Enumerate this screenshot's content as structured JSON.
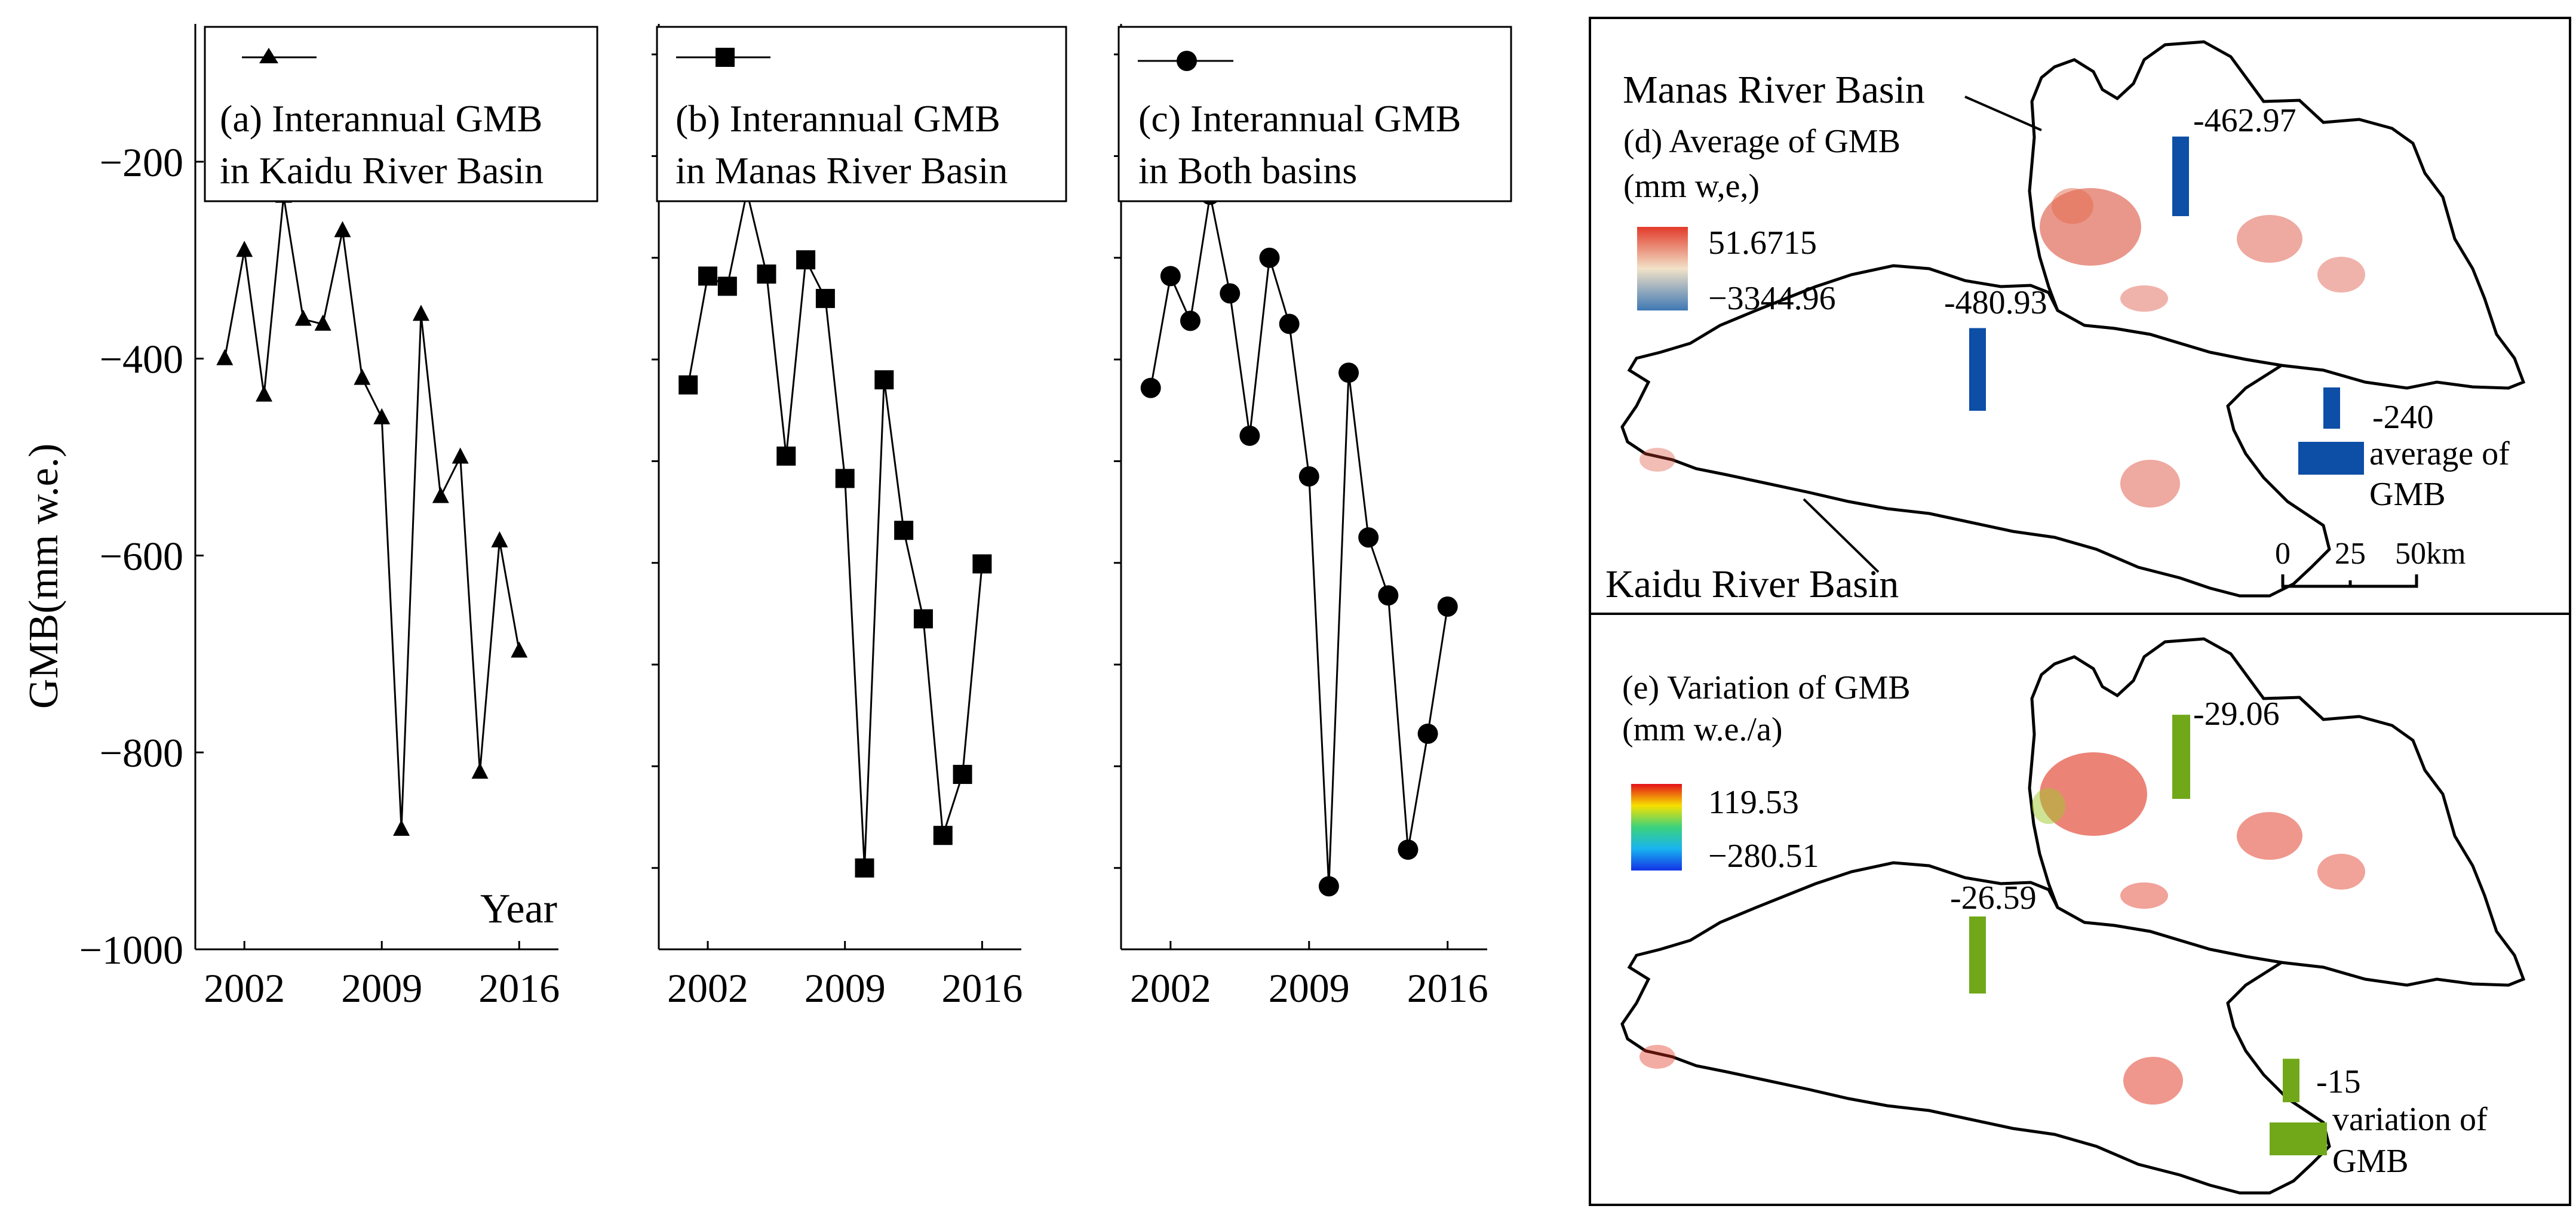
{
  "chart_data": [
    {
      "type": "line",
      "marker": "triangle",
      "title": "(a) Interannual GMB in Kaidu River Basin",
      "title_lines": [
        "(a) Interannual GMB",
        "in Kaidu River Basin"
      ],
      "xlabel": "Year",
      "ylabel": "GMB(mm w.e.)",
      "xlim": [
        1999.5,
        2018
      ],
      "ylim": [
        -1000,
        -60
      ],
      "xticks": [
        2002,
        2009,
        2016
      ],
      "xtick_labels": [
        "2002",
        "2009",
        "2016"
      ],
      "yticks": [
        -200,
        -400,
        -600,
        -800,
        -1000
      ],
      "ytick_labels": [
        "−200",
        "−400",
        "−600",
        "−800",
        "−1000"
      ],
      "x": [
        2001,
        2002,
        2003,
        2004,
        2005,
        2006,
        2007,
        2008,
        2009,
        2010,
        2011,
        2012,
        2013,
        2014,
        2015,
        2016
      ],
      "values": [
        -400,
        -290,
        -437,
        -235,
        -360,
        -365,
        -270,
        -420,
        -460,
        -878,
        -355,
        -540,
        -500,
        -820,
        -585,
        -697
      ]
    },
    {
      "type": "line",
      "marker": "square",
      "title": "(b) Interannual GMB in Manas River Basin",
      "title_lines": [
        "(b) Interannual GMB",
        "in Manas River Basin"
      ],
      "xlim": [
        1999.5,
        2018
      ],
      "ylim": [
        -980,
        -70
      ],
      "xticks": [
        2002,
        2009,
        2016
      ],
      "xtick_labels": [
        "2002",
        "2009",
        "2016"
      ],
      "x": [
        2001,
        2002,
        2003,
        2004,
        2005,
        2006,
        2007,
        2008,
        2009,
        2010,
        2011,
        2012,
        2013,
        2014,
        2015,
        2016
      ],
      "values": [
        -425,
        -318,
        -328,
        -235,
        -316,
        -495,
        -302,
        -340,
        -517,
        -900,
        -420,
        -568,
        -655,
        -868,
        -808,
        -601
      ]
    },
    {
      "type": "line",
      "marker": "circle",
      "title": "(c) Interannual GMB in Both basins",
      "title_lines": [
        "(c) Interannual GMB",
        "in Both basins"
      ],
      "xlim": [
        1999.5,
        2018
      ],
      "ylim": [
        -980,
        -70
      ],
      "xticks": [
        2002,
        2009,
        2016
      ],
      "xtick_labels": [
        "2002",
        "2009",
        "2016"
      ],
      "x": [
        2001,
        2002,
        2003,
        2004,
        2005,
        2006,
        2007,
        2008,
        2009,
        2010,
        2011,
        2012,
        2013,
        2014,
        2015,
        2016
      ],
      "values": [
        -428,
        -318,
        -362,
        -238,
        -335,
        -475,
        -300,
        -365,
        -515,
        -918,
        -413,
        -575,
        -632,
        -882,
        -768,
        -643
      ]
    }
  ],
  "map_panels": {
    "d": {
      "basin_label_manas": "Manas River Basin",
      "basin_label_kaidu": "Kaidu River Basin",
      "title": "(d) Average of GMB",
      "unit": "(mm w,e,)",
      "legend_max": "51.6715",
      "legend_min": "−3344.96",
      "bar_manas_label": "-462.97",
      "bar_kaidu_label": "-480.93",
      "key_value": "-240",
      "key_caption_line1": "average of",
      "key_caption_line2": "GMB",
      "scale_labels": [
        "0",
        "25",
        "50km"
      ],
      "bar_values": {
        "manas": -462.97,
        "kaidu": -480.93,
        "key": -240
      },
      "bar_color": "#0d4ea6"
    },
    "e": {
      "title": "(e) Variation of  GMB",
      "unit": "(mm w.e./a)",
      "legend_max": "119.53",
      "legend_min": "−280.51",
      "bar_manas_label": "-29.06",
      "bar_kaidu_label": "-26.59",
      "key_value": "-15",
      "key_caption_line1": "variation of",
      "key_caption_line2": "GMB",
      "bar_values": {
        "manas": -29.06,
        "kaidu": -26.59,
        "key": -15
      },
      "bar_color": "#70a81a"
    }
  }
}
